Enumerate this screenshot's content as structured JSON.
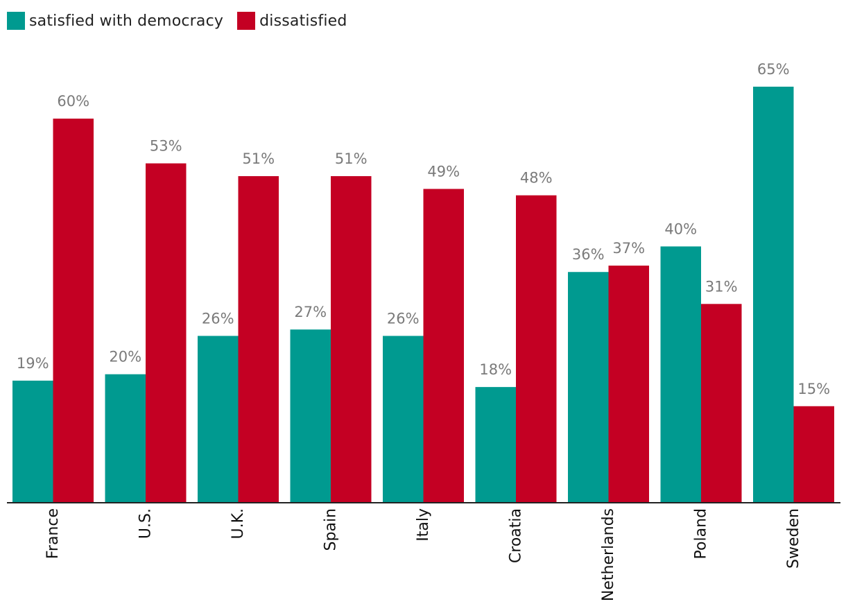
{
  "chart_data": {
    "type": "bar",
    "title": "",
    "xlabel": "",
    "ylabel": "",
    "ylim": [
      0,
      65
    ],
    "grid": false,
    "legend_position": "top-left",
    "value_suffix": "%",
    "categories": [
      "France",
      "U.S.",
      "U.K.",
      "Spain",
      "Italy",
      "Croatia",
      "Netherlands",
      "Poland",
      "Sweden"
    ],
    "series": [
      {
        "name": "satisfied with democracy",
        "color": "#009a90",
        "values": [
          19,
          20,
          26,
          27,
          26,
          18,
          36,
          40,
          65
        ]
      },
      {
        "name": "dissatisfied",
        "color": "#c40023",
        "values": [
          60,
          53,
          51,
          51,
          49,
          48,
          37,
          31,
          15
        ]
      }
    ]
  }
}
